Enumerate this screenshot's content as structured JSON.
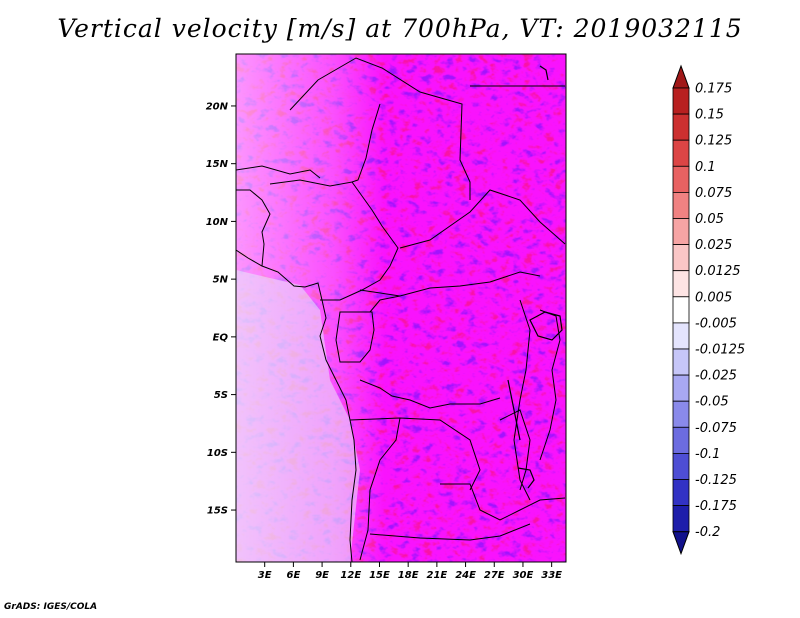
{
  "title": "Vertical velocity [m/s] at 700hPa, VT: 2019032115",
  "credit": "GrADS: IGES/COLA",
  "map": {
    "lat_labels": [
      "20N",
      "15N",
      "10N",
      "5N",
      "EQ",
      "5S",
      "10S",
      "15S"
    ],
    "lat_values": [
      20,
      15,
      10,
      5,
      0,
      -5,
      -10,
      -15
    ],
    "lon_labels": [
      "3E",
      "6E",
      "9E",
      "12E",
      "15E",
      "18E",
      "21E",
      "24E",
      "27E",
      "30E",
      "33E"
    ],
    "lon_values": [
      3,
      6,
      9,
      12,
      15,
      18,
      21,
      24,
      27,
      30,
      33
    ],
    "lon_range": [
      0,
      34.5
    ],
    "lat_range": [
      -19.5,
      24.5
    ]
  },
  "colorbar": {
    "labels": [
      "0.175",
      "0.15",
      "0.125",
      "0.1",
      "0.075",
      "0.05",
      "0.025",
      "0.0125",
      "0.005",
      "-0.005",
      "-0.0125",
      "-0.025",
      "-0.05",
      "-0.075",
      "-0.1",
      "-0.125",
      "-0.175",
      "-0.2"
    ],
    "colors": [
      "#a01818",
      "#b82020",
      "#cc3030",
      "#dc4545",
      "#e86262",
      "#f08282",
      "#f6a4a4",
      "#fac6c6",
      "#fde4e4",
      "#ffffff",
      "#e4e4fd",
      "#c6c6f8",
      "#a8a8f2",
      "#8a8aea",
      "#6c6ce0",
      "#4e4ed4",
      "#3232c4",
      "#1e1eaa",
      "#12128c"
    ]
  }
}
